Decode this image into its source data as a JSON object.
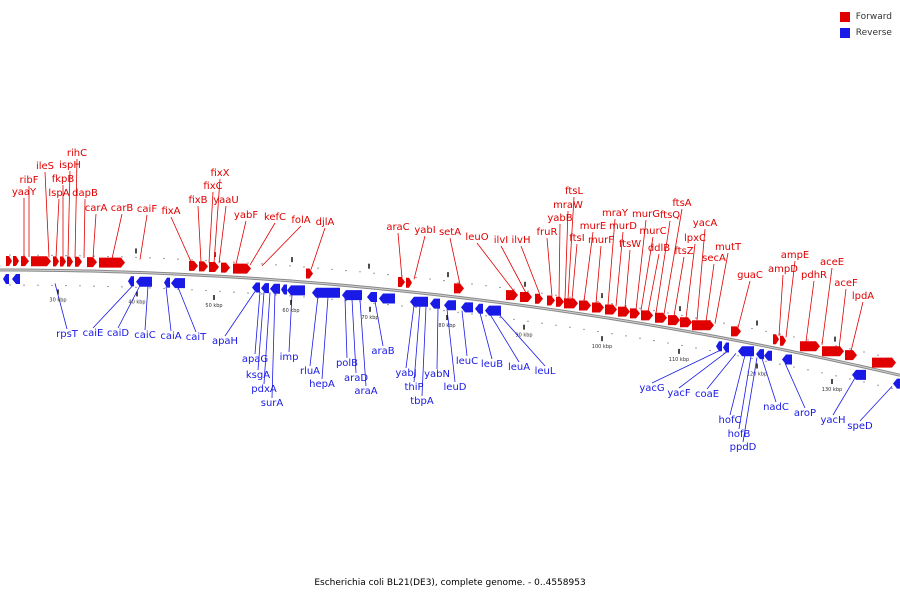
{
  "legend": [
    {
      "label": "Forward",
      "color": "#e00000"
    },
    {
      "label": "Reverse",
      "color": "#1a1ae6"
    }
  ],
  "caption": "Escherichia coli BL21(DE3), complete genome. - 0..4558953",
  "colors": {
    "forward": "#e00000",
    "reverse": "#1a1ae6",
    "backbone": "#888888"
  },
  "scale_labels": [
    {
      "text": "30 kbp"
    },
    {
      "text": "40 kbp"
    },
    {
      "text": "50 kbp"
    },
    {
      "text": "60 kbp"
    },
    {
      "text": "70 kbp"
    },
    {
      "text": "80 kbp"
    },
    {
      "text": "90 kbp"
    },
    {
      "text": "100 kbp"
    },
    {
      "text": "110 kbp"
    },
    {
      "text": "120 kbp"
    },
    {
      "text": "130 kbp"
    }
  ],
  "forward_genes": [
    {
      "name": "ribF"
    },
    {
      "name": "yaaY"
    },
    {
      "name": "ileS"
    },
    {
      "name": "lspA"
    },
    {
      "name": "fkpB"
    },
    {
      "name": "ispH"
    },
    {
      "name": "rihC"
    },
    {
      "name": "dapB"
    },
    {
      "name": "carA"
    },
    {
      "name": "carB"
    },
    {
      "name": "caiF"
    },
    {
      "name": "fixA"
    },
    {
      "name": "fixB"
    },
    {
      "name": "fixC"
    },
    {
      "name": "fixX"
    },
    {
      "name": "yaaU"
    },
    {
      "name": "yabF"
    },
    {
      "name": "kefC"
    },
    {
      "name": "folA"
    },
    {
      "name": "djlA"
    },
    {
      "name": "araC"
    },
    {
      "name": "yabI"
    },
    {
      "name": "setA"
    },
    {
      "name": "leuO"
    },
    {
      "name": "ilvI"
    },
    {
      "name": "ilvH"
    },
    {
      "name": "fruR"
    },
    {
      "name": "yabB"
    },
    {
      "name": "mraW"
    },
    {
      "name": "ftsL"
    },
    {
      "name": "ftsI"
    },
    {
      "name": "murE"
    },
    {
      "name": "murF"
    },
    {
      "name": "mraY"
    },
    {
      "name": "murD"
    },
    {
      "name": "ftsW"
    },
    {
      "name": "murG"
    },
    {
      "name": "murC"
    },
    {
      "name": "ddlB"
    },
    {
      "name": "ftsQ"
    },
    {
      "name": "ftsA"
    },
    {
      "name": "ftsZ"
    },
    {
      "name": "lpxC"
    },
    {
      "name": "secA"
    },
    {
      "name": "yacA"
    },
    {
      "name": "mutT"
    },
    {
      "name": "guaC"
    },
    {
      "name": "ampD"
    },
    {
      "name": "ampE"
    },
    {
      "name": "pdhR"
    },
    {
      "name": "aceE"
    },
    {
      "name": "aceF"
    },
    {
      "name": "lpdA"
    }
  ],
  "reverse_genes": [
    {
      "name": "rpsT"
    },
    {
      "name": "caiE"
    },
    {
      "name": "caiD"
    },
    {
      "name": "caiC"
    },
    {
      "name": "caiA"
    },
    {
      "name": "caiT"
    },
    {
      "name": "apaH"
    },
    {
      "name": "apaG"
    },
    {
      "name": "ksgA"
    },
    {
      "name": "pdxA"
    },
    {
      "name": "surA"
    },
    {
      "name": "imp"
    },
    {
      "name": "rluA"
    },
    {
      "name": "hepA"
    },
    {
      "name": "polB"
    },
    {
      "name": "araD"
    },
    {
      "name": "araA"
    },
    {
      "name": "araB"
    },
    {
      "name": "yabJ"
    },
    {
      "name": "thiP"
    },
    {
      "name": "tbpA"
    },
    {
      "name": "yabN"
    },
    {
      "name": "leuD"
    },
    {
      "name": "leuC"
    },
    {
      "name": "leuB"
    },
    {
      "name": "leuA"
    },
    {
      "name": "leuL"
    },
    {
      "name": "yacG"
    },
    {
      "name": "yacF"
    },
    {
      "name": "coaE"
    },
    {
      "name": "hofC"
    },
    {
      "name": "hofB"
    },
    {
      "name": "ppdD"
    },
    {
      "name": "nadC"
    },
    {
      "name": "aroP"
    },
    {
      "name": "yacH"
    },
    {
      "name": "speD"
    }
  ]
}
